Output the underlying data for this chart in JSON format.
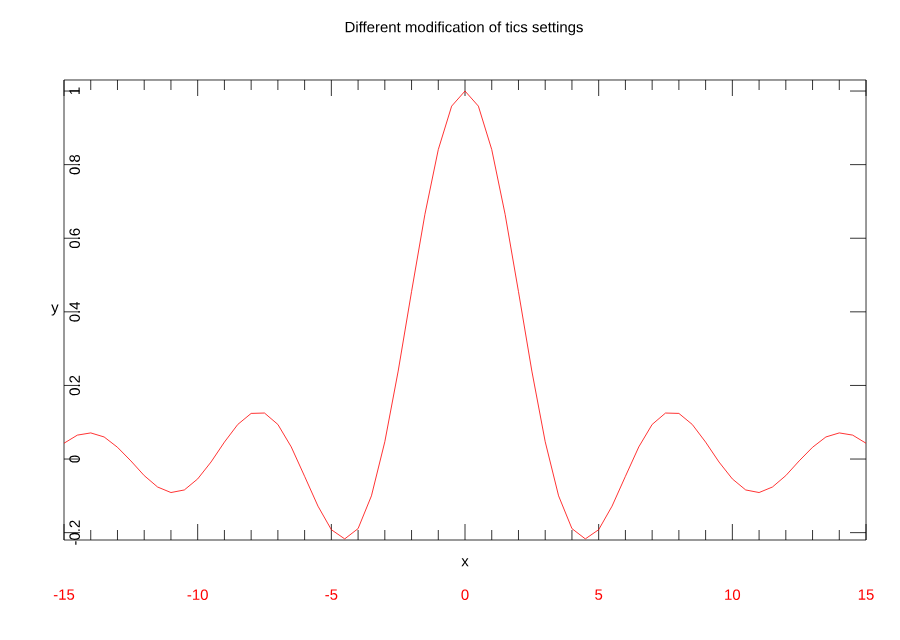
{
  "chart_data": {
    "type": "line",
    "title": "Different modification of tics settings",
    "xlabel": "x",
    "ylabel": "y",
    "x": [
      -15,
      -14.5,
      -14,
      -13.5,
      -13,
      -12.5,
      -12,
      -11.5,
      -11,
      -10.5,
      -10,
      -9.5,
      -9,
      -8.5,
      -8,
      -7.5,
      -7,
      -6.5,
      -6,
      -5.5,
      -5,
      -4.5,
      -4,
      -3.5,
      -3,
      -2.5,
      -2,
      -1.5,
      -1,
      -0.5,
      0,
      0.5,
      1,
      1.5,
      2,
      2.5,
      3,
      3.5,
      4,
      4.5,
      5,
      5.5,
      6,
      6.5,
      7,
      7.5,
      8,
      8.5,
      9,
      9.5,
      10,
      10.5,
      11,
      11.5,
      12,
      12.5,
      13,
      13.5,
      14,
      14.5,
      15
    ],
    "series": [
      {
        "color": "#ff0000",
        "values": [
          0.043,
          0.065,
          0.071,
          0.06,
          0.032,
          -0.005,
          -0.045,
          -0.076,
          -0.091,
          -0.084,
          -0.054,
          -0.008,
          0.046,
          0.094,
          0.124,
          0.125,
          0.094,
          0.033,
          -0.047,
          -0.128,
          -0.192,
          -0.217,
          -0.189,
          -0.1,
          0.047,
          0.239,
          0.455,
          0.665,
          0.841,
          0.959,
          1,
          0.959,
          0.841,
          0.665,
          0.455,
          0.239,
          0.047,
          -0.1,
          -0.189,
          -0.217,
          -0.192,
          -0.128,
          -0.047,
          0.033,
          0.094,
          0.125,
          0.124,
          0.094,
          0.046,
          -0.008,
          -0.054,
          -0.084,
          -0.091,
          -0.076,
          -0.045,
          -0.005,
          0.032,
          0.06,
          0.071,
          0.065,
          0.043
        ]
      }
    ],
    "xlim": [
      -15,
      15
    ],
    "ylim": [
      -0.22,
      1.03
    ],
    "xticks": [
      -15,
      -10,
      -5,
      0,
      5,
      10,
      15
    ],
    "yticks": [
      -0.2,
      0,
      0.2,
      0.4,
      0.6,
      0.8,
      1
    ],
    "grid": false,
    "legend": false,
    "marker": "none",
    "line_style": "solid"
  }
}
